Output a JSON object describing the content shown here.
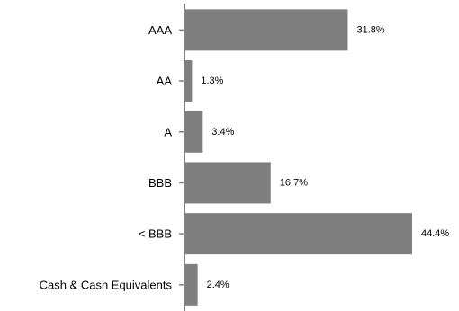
{
  "chart_data": {
    "type": "bar",
    "orientation": "horizontal",
    "categories": [
      "AAA",
      "AA",
      "A",
      "BBB",
      "< BBB",
      "Cash & Cash Equivalents"
    ],
    "values": [
      31.8,
      1.3,
      3.4,
      16.7,
      44.4,
      2.4
    ],
    "value_labels": [
      "31.8%",
      "1.3%",
      "3.4%",
      "16.7%",
      "44.4%",
      "2.4%"
    ],
    "xlim": [
      0,
      44.4
    ],
    "grid": false,
    "legend": "none",
    "colors": {
      "bar": "#7f7f7f",
      "axis": "#7f7f7f"
    }
  }
}
